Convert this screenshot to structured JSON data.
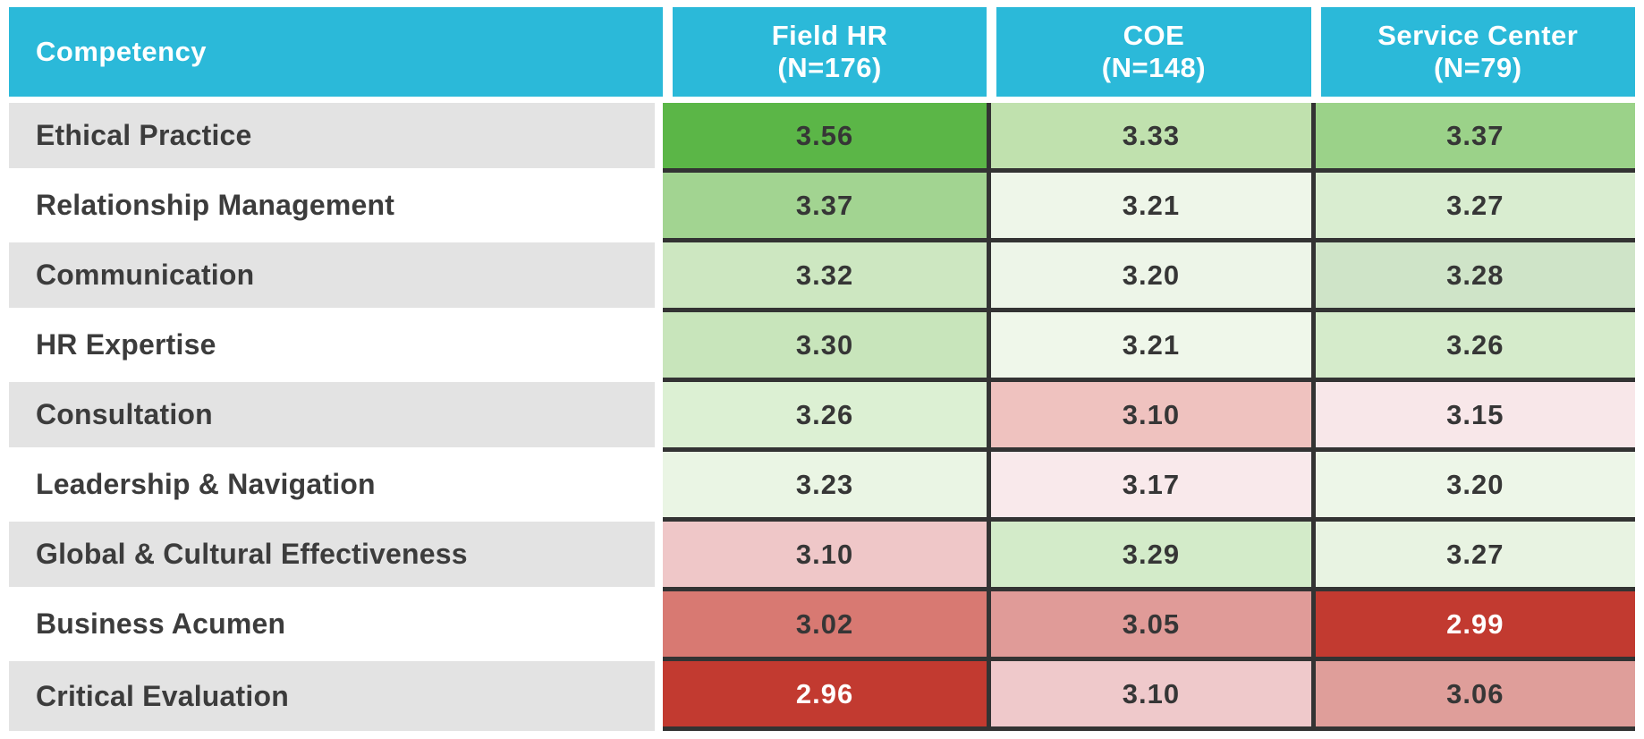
{
  "colors": {
    "header_bg": "#2BB9D9",
    "header_text": "#FFFFFF",
    "label_row_gray": "#E3E3E3",
    "label_row_white": "#FFFFFF",
    "label_text": "#3C3C3C",
    "cell_border": "#333333",
    "value_text_dark": "#363636",
    "value_text_light": "#FFFFFF",
    "scale_high_green": "#5BB647",
    "scale_low_red": "#C23A30"
  },
  "table": {
    "header": {
      "competency": "Competency",
      "col1_line1": "Field HR",
      "col1_line2": "(N=176)",
      "col2_line1": "COE",
      "col2_line2": "(N=148)",
      "col3_line1": "Service Center",
      "col3_line2": "(N=79)"
    },
    "rows": [
      {
        "label": "Ethical Practice",
        "cells": [
          {
            "value": "3.56",
            "bg": "#5BB647",
            "fg": "#363636"
          },
          {
            "value": "3.33",
            "bg": "#C0E1AE",
            "fg": "#363636"
          },
          {
            "value": "3.37",
            "bg": "#9BD289",
            "fg": "#363636"
          }
        ]
      },
      {
        "label": "Relationship Management",
        "cells": [
          {
            "value": "3.37",
            "bg": "#A2D491",
            "fg": "#363636"
          },
          {
            "value": "3.21",
            "bg": "#EEF6E9",
            "fg": "#363636"
          },
          {
            "value": "3.27",
            "bg": "#D9EDD0",
            "fg": "#363636"
          }
        ]
      },
      {
        "label": "Communication",
        "cells": [
          {
            "value": "3.32",
            "bg": "#CDE7C1",
            "fg": "#363636"
          },
          {
            "value": "3.20",
            "bg": "#EDF5E8",
            "fg": "#363636"
          },
          {
            "value": "3.28",
            "bg": "#CFE4C8",
            "fg": "#363636"
          }
        ]
      },
      {
        "label": "HR Expertise",
        "cells": [
          {
            "value": "3.30",
            "bg": "#C8E5BB",
            "fg": "#363636"
          },
          {
            "value": "3.21",
            "bg": "#EFF7EA",
            "fg": "#363636"
          },
          {
            "value": "3.26",
            "bg": "#D5EBCB",
            "fg": "#363636"
          }
        ]
      },
      {
        "label": "Consultation",
        "cells": [
          {
            "value": "3.26",
            "bg": "#DCF0D3",
            "fg": "#363636"
          },
          {
            "value": "3.10",
            "bg": "#EFC2BF",
            "fg": "#363636"
          },
          {
            "value": "3.15",
            "bg": "#F8E7E9",
            "fg": "#363636"
          }
        ]
      },
      {
        "label": "Leadership & Navigation",
        "cells": [
          {
            "value": "3.23",
            "bg": "#EAF5E4",
            "fg": "#363636"
          },
          {
            "value": "3.17",
            "bg": "#F9E9EB",
            "fg": "#363636"
          },
          {
            "value": "3.20",
            "bg": "#EDF6E8",
            "fg": "#363636"
          }
        ]
      },
      {
        "label": "Global & Cultural Effectiveness",
        "cells": [
          {
            "value": "3.10",
            "bg": "#EFC7C8",
            "fg": "#363636"
          },
          {
            "value": "3.29",
            "bg": "#D3EBC9",
            "fg": "#363636"
          },
          {
            "value": "3.27",
            "bg": "#E8F3E2",
            "fg": "#363636"
          }
        ]
      },
      {
        "label": "Business Acumen",
        "cells": [
          {
            "value": "3.02",
            "bg": "#D87972",
            "fg": "#363636"
          },
          {
            "value": "3.05",
            "bg": "#E09B98",
            "fg": "#363636"
          },
          {
            "value": "2.99",
            "bg": "#C23A30",
            "fg": "#FFFFFF"
          }
        ]
      },
      {
        "label": "Critical Evaluation",
        "cells": [
          {
            "value": "2.96",
            "bg": "#C23A30",
            "fg": "#FFFFFF"
          },
          {
            "value": "3.10",
            "bg": "#EFC9CB",
            "fg": "#363636"
          },
          {
            "value": "3.06",
            "bg": "#DF9E9A",
            "fg": "#363636"
          }
        ]
      }
    ]
  },
  "chart_data": {
    "type": "heatmap",
    "title": "",
    "categories": [
      "Ethical Practice",
      "Relationship Management",
      "Communication",
      "HR Expertise",
      "Consultation",
      "Leadership & Navigation",
      "Global & Cultural Effectiveness",
      "Business Acumen",
      "Critical Evaluation"
    ],
    "series": [
      {
        "name": "Field HR (N=176)",
        "values": [
          3.56,
          3.37,
          3.32,
          3.3,
          3.26,
          3.23,
          3.1,
          3.02,
          2.96
        ]
      },
      {
        "name": "COE (N=148)",
        "values": [
          3.33,
          3.21,
          3.2,
          3.21,
          3.1,
          3.17,
          3.29,
          3.05,
          3.1
        ]
      },
      {
        "name": "Service Center (N=79)",
        "values": [
          3.37,
          3.27,
          3.28,
          3.26,
          3.15,
          3.2,
          3.27,
          2.99,
          3.06
        ]
      }
    ],
    "legend_position": "none",
    "color_scale": "green = higher score, red = lower score"
  }
}
